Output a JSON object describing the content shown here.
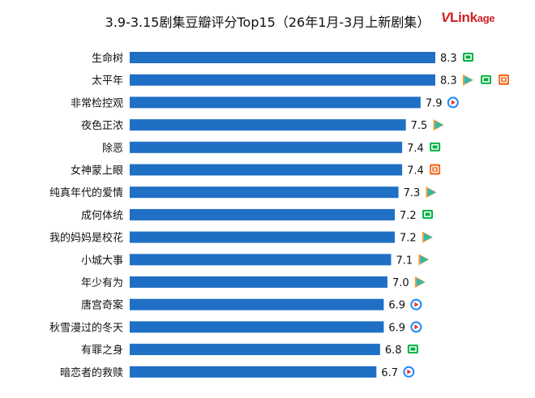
{
  "chart_data": {
    "type": "bar",
    "orientation": "horizontal",
    "title": "3.9-3.15剧集豆瓣评分Top15（26年1月-3月上新剧集）",
    "categories": [
      "生命树",
      "太平年",
      "非常检控观",
      "夜色正浓",
      "除恶",
      "女神蒙上眼",
      "纯真年代的爱情",
      "成何体统",
      "我的妈妈是校花",
      "小城大事",
      "年少有为",
      "唐宫奇案",
      "秋雪漫过的冬天",
      "有罪之身",
      "暗恋者的救赎"
    ],
    "values": [
      8.3,
      8.3,
      7.9,
      7.5,
      7.4,
      7.4,
      7.3,
      7.2,
      7.2,
      7.1,
      7.0,
      6.9,
      6.9,
      6.8,
      6.7
    ],
    "value_labels": [
      "8.3",
      "8.3",
      "7.9",
      "7.5",
      "7.4",
      "7.4",
      "7.3",
      "7.2",
      "7.2",
      "7.1",
      "7.0",
      "6.9",
      "6.9",
      "6.8",
      "6.7"
    ],
    "platforms": [
      [
        "iqiyi"
      ],
      [
        "tencent",
        "iqiyi",
        "mango"
      ],
      [
        "youku"
      ],
      [
        "tencent"
      ],
      [
        "iqiyi"
      ],
      [
        "mango"
      ],
      [
        "tencent"
      ],
      [
        "iqiyi"
      ],
      [
        "tencent"
      ],
      [
        "tencent"
      ],
      [
        "tencent"
      ],
      [
        "youku"
      ],
      [
        "youku"
      ],
      [
        "iqiyi"
      ],
      [
        "youku"
      ]
    ],
    "bar_color": "#1f6fc5",
    "xlim": [
      0,
      8.3
    ],
    "grid": false,
    "legend": "none"
  },
  "brand": {
    "v": "V",
    "rest": "Link",
    "sub": "age"
  },
  "platform_icons": {
    "iqiyi": {
      "name": "iqiyi-icon",
      "color": "#00b140"
    },
    "tencent": {
      "name": "tencent-video-icon",
      "color": "#1aa0f0"
    },
    "mango": {
      "name": "mango-tv-icon",
      "color": "#f26b1d"
    },
    "youku": {
      "name": "youku-icon",
      "color": "#1e88ff"
    }
  }
}
